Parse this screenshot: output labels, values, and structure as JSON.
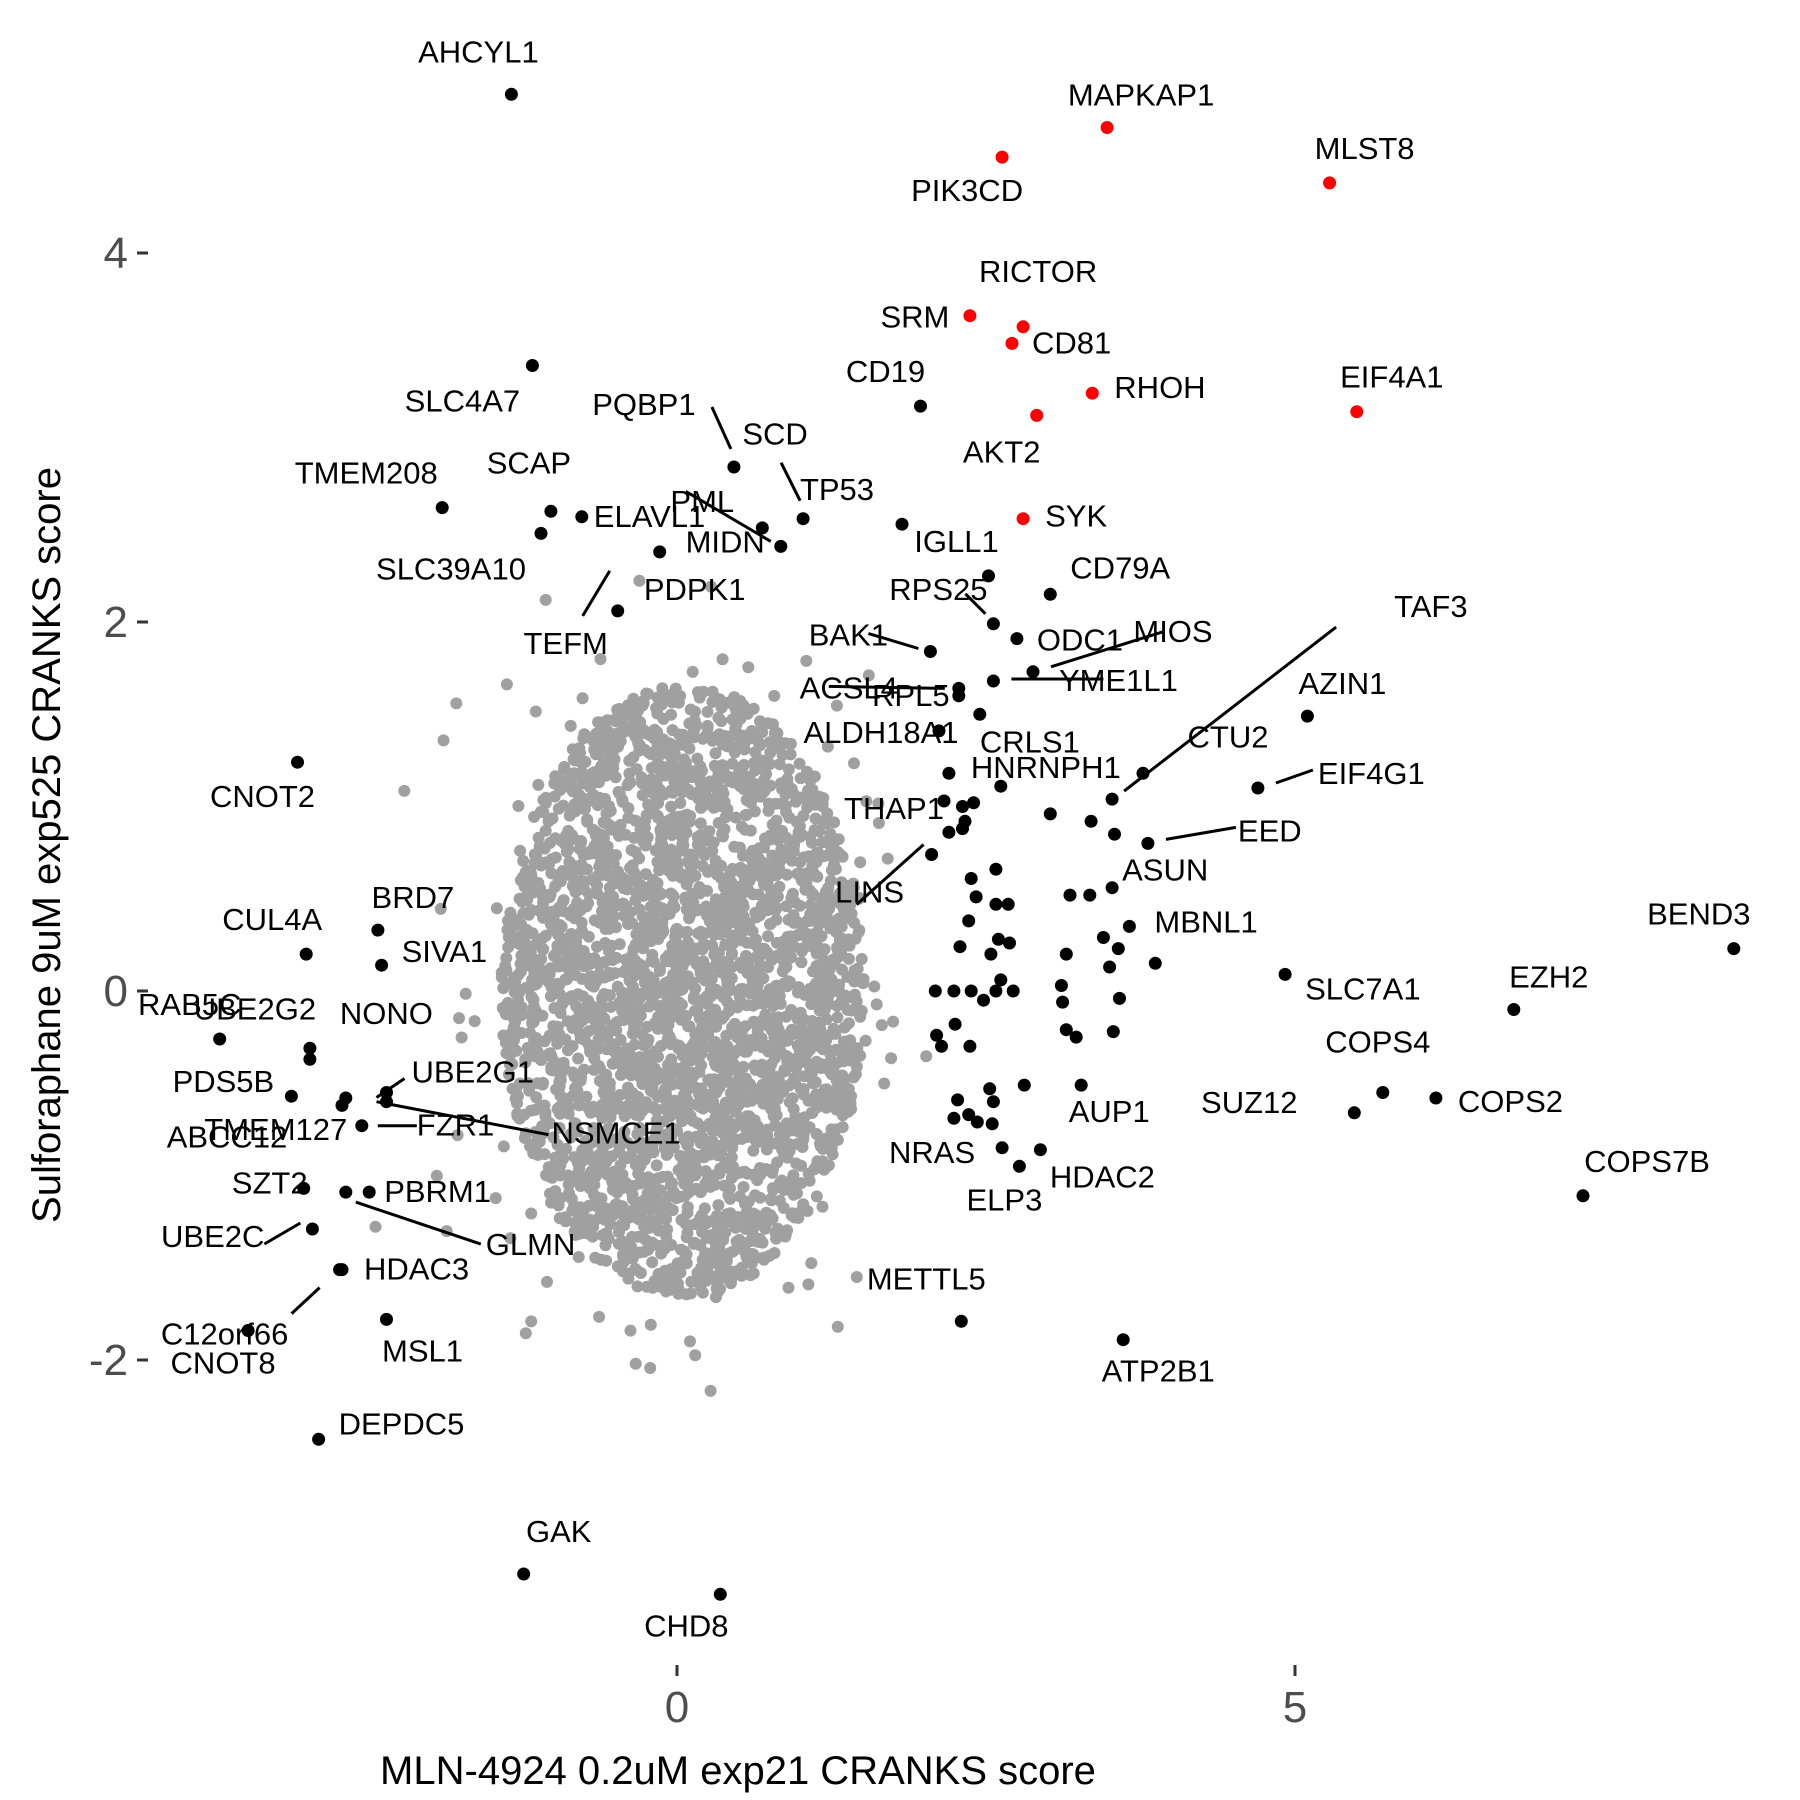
{
  "chart_data": {
    "type": "scatter",
    "xlabel": "MLN-4924 0.2uM exp21 CRANKS score",
    "ylabel": "Sulforaphane 9uM exp525 CRANKS score",
    "xlim": [
      -4.8,
      8.6
    ],
    "ylim": [
      -3.7,
      5.0
    ],
    "x_ticks": [
      0,
      5
    ],
    "y_ticks": [
      -2,
      0,
      2,
      4
    ],
    "grid": false,
    "legend": "none",
    "colors": {
      "background": "#e8e6e0",
      "highlight": "#ff0000",
      "labeled": "#000000"
    },
    "series": [
      {
        "color": "#ff0000",
        "points": [
          {
            "label": "MAPKAP1",
            "x": 3.48,
            "y": 4.68
          },
          {
            "label": "PIK3CD",
            "x": 2.63,
            "y": 4.52
          },
          {
            "label": "MLST8",
            "x": 5.28,
            "y": 4.38
          },
          {
            "label": "RICTOR",
            "x": 2.8,
            "y": 3.6
          },
          {
            "label": "SRM",
            "x": 2.37,
            "y": 3.66
          },
          {
            "label": "CD81",
            "x": 2.71,
            "y": 3.51
          },
          {
            "label": "RHOH",
            "x": 3.36,
            "y": 3.24
          },
          {
            "label": "AKT2",
            "x": 2.91,
            "y": 3.12
          },
          {
            "label": "EIF4A1",
            "x": 5.5,
            "y": 3.14
          },
          {
            "label": "SYK",
            "x": 2.8,
            "y": 2.56
          }
        ]
      },
      {
        "color": "#000000",
        "points": [
          {
            "label": "AHCYL1",
            "x": -1.34,
            "y": 4.86
          },
          {
            "label": "SLC4A7",
            "x": -1.17,
            "y": 3.39
          },
          {
            "label": "CD19",
            "x": 1.97,
            "y": 3.17
          },
          {
            "label": "PQBP1",
            "x": 0.46,
            "y": 2.84
          },
          {
            "label": "SCD",
            "x": 1.02,
            "y": 2.56
          },
          {
            "label": "TMEM208",
            "x": -1.9,
            "y": 2.62
          },
          {
            "label": "SCAP",
            "x": -1.02,
            "y": 2.6
          },
          {
            "label": "ELAVL1",
            "x": -0.77,
            "y": 2.57
          },
          {
            "label": "PML",
            "x": 0.69,
            "y": 2.51
          },
          {
            "label": "TP53",
            "x": 1.82,
            "y": 2.53
          },
          {
            "label": "SLC39A10",
            "x": -1.1,
            "y": 2.48
          },
          {
            "label": "MIDN",
            "x": 0.84,
            "y": 2.41
          },
          {
            "label": "PDPK1",
            "x": -0.14,
            "y": 2.38
          },
          {
            "label": "IGLL1",
            "x": 2.52,
            "y": 2.25
          },
          {
            "label": "CD79A",
            "x": 3.02,
            "y": 2.15
          },
          {
            "label": "TEFM",
            "x": -0.48,
            "y": 2.06
          },
          {
            "label": "RPS25",
            "x": 2.56,
            "y": 1.99
          },
          {
            "label": "ODC1",
            "x": 2.75,
            "y": 1.91
          },
          {
            "label": "BAK1",
            "x": 2.05,
            "y": 1.84
          },
          {
            "label": "MIOS",
            "x": 2.88,
            "y": 1.73
          },
          {
            "label": "YME1L1",
            "x": 2.56,
            "y": 1.68
          },
          {
            "label": "ACSL4",
            "x": 2.28,
            "y": 1.64
          },
          {
            "label": "RPL5",
            "x": 2.28,
            "y": 1.6
          },
          {
            "label": "CRLS1",
            "x": 2.45,
            "y": 1.5
          },
          {
            "label": "AZIN1",
            "x": 5.1,
            "y": 1.49
          },
          {
            "label": "ALDH18A1",
            "x": 2.12,
            "y": 1.41
          },
          {
            "label": "CTU2",
            "x": 3.77,
            "y": 1.18
          },
          {
            "label": "HNRNPH1",
            "x": 2.62,
            "y": 1.11
          },
          {
            "label": "EIF4G1",
            "x": 4.7,
            "y": 1.1
          },
          {
            "label": "TAF3",
            "x": 3.52,
            "y": 1.04
          },
          {
            "label": "THAP1",
            "x": 2.16,
            "y": 1.03
          },
          {
            "label": "EED",
            "x": 3.81,
            "y": 0.8
          },
          {
            "label": "LINS",
            "x": 2.06,
            "y": 0.74
          },
          {
            "label": "ASUN",
            "x": 3.52,
            "y": 0.56
          },
          {
            "label": "MBNL1",
            "x": 3.66,
            "y": 0.35
          },
          {
            "label": "BEND3",
            "x": 8.55,
            "y": 0.23
          },
          {
            "label": "SLC7A1",
            "x": 4.92,
            "y": 0.09
          },
          {
            "label": "EZH2",
            "x": 6.77,
            "y": -0.1
          },
          {
            "label": "CUL4A",
            "x": -3.0,
            "y": 0.2
          },
          {
            "label": "BRD7",
            "x": -2.42,
            "y": 0.33
          },
          {
            "label": "SIVA1",
            "x": -2.39,
            "y": 0.14
          },
          {
            "label": "RAB5C",
            "x": -3.7,
            "y": -0.26
          },
          {
            "label": "NONO",
            "x": -2.97,
            "y": -0.31
          },
          {
            "label": "UBE2G2",
            "x": -2.97,
            "y": -0.37
          },
          {
            "label": "COPS4",
            "x": 5.71,
            "y": -0.55
          },
          {
            "label": "UBE2G1",
            "x": -2.35,
            "y": -0.55
          },
          {
            "label": "PDS5B",
            "x": -3.12,
            "y": -0.57
          },
          {
            "label": "COPS2",
            "x": 6.14,
            "y": -0.58
          },
          {
            "label": "TMEM127",
            "x": -2.68,
            "y": -0.58
          },
          {
            "label": "ABCC12",
            "x": -2.71,
            "y": -0.62
          },
          {
            "label": "SUZ12",
            "x": 5.48,
            "y": -0.66
          },
          {
            "label": "FZR1",
            "x": -2.55,
            "y": -0.73
          },
          {
            "label": "NSMCE1",
            "x": -2.35,
            "y": -0.6
          },
          {
            "label": "AUP1",
            "x": 3.27,
            "y": -0.51
          },
          {
            "label": "NRAS",
            "x": 2.63,
            "y": -0.85
          },
          {
            "label": "HDAC2",
            "x": 2.94,
            "y": -0.86
          },
          {
            "label": "ELP3",
            "x": 2.77,
            "y": -0.95
          },
          {
            "label": "COPS7B",
            "x": 7.33,
            "y": -1.11
          },
          {
            "label": "SZT2",
            "x": -3.02,
            "y": -1.07
          },
          {
            "label": "PBRM1",
            "x": -2.49,
            "y": -1.09
          },
          {
            "label": "GLMN",
            "x": -2.68,
            "y": -1.09
          },
          {
            "label": "UBE2C",
            "x": -2.95,
            "y": -1.29
          },
          {
            "label": "C12orf66",
            "x": -2.73,
            "y": -1.51
          },
          {
            "label": "HDAC3",
            "x": -2.71,
            "y": -1.51
          },
          {
            "label": "METTL5",
            "x": 2.3,
            "y": -1.79
          },
          {
            "label": "MSL1",
            "x": -2.35,
            "y": -1.78
          },
          {
            "label": "CNOT8",
            "x": -3.47,
            "y": -1.84
          },
          {
            "label": "ATP2B1",
            "x": 3.61,
            "y": -1.89
          },
          {
            "label": "CNOT2",
            "x": -3.07,
            "y": 1.24
          },
          {
            "label": "DEPDC5",
            "x": -2.9,
            "y": -2.43
          },
          {
            "label": "GAK",
            "x": -1.24,
            "y": -3.16
          },
          {
            "label": "CHD8",
            "x": 0.35,
            "y": -3.27
          },
          {
            "label": "",
            "x": 3.02,
            "y": 0.96
          },
          {
            "label": "",
            "x": 3.35,
            "y": 0.92
          },
          {
            "label": "",
            "x": 3.54,
            "y": 0.85
          },
          {
            "label": "",
            "x": 2.2,
            "y": 1.18
          },
          {
            "label": "",
            "x": 2.31,
            "y": 1.0
          },
          {
            "label": "",
            "x": 2.33,
            "y": 0.92
          },
          {
            "label": "",
            "x": 2.4,
            "y": 1.02
          },
          {
            "label": "",
            "x": 2.2,
            "y": 0.86
          },
          {
            "label": "",
            "x": 2.31,
            "y": 0.88
          },
          {
            "label": "",
            "x": 2.58,
            "y": 0.66
          },
          {
            "label": "",
            "x": 2.38,
            "y": 0.61
          },
          {
            "label": "",
            "x": 2.42,
            "y": 0.51
          },
          {
            "label": "",
            "x": 2.58,
            "y": 0.47
          },
          {
            "label": "",
            "x": 2.68,
            "y": 0.47
          },
          {
            "label": "",
            "x": 3.18,
            "y": 0.52
          },
          {
            "label": "",
            "x": 3.34,
            "y": 0.52
          },
          {
            "label": "",
            "x": 2.36,
            "y": 0.38
          },
          {
            "label": "",
            "x": 2.6,
            "y": 0.28
          },
          {
            "label": "",
            "x": 2.69,
            "y": 0.26
          },
          {
            "label": "",
            "x": 3.45,
            "y": 0.29
          },
          {
            "label": "",
            "x": 3.57,
            "y": 0.23
          },
          {
            "label": "",
            "x": 2.29,
            "y": 0.24
          },
          {
            "label": "",
            "x": 2.54,
            "y": 0.2
          },
          {
            "label": "",
            "x": 3.15,
            "y": 0.2
          },
          {
            "label": "",
            "x": 3.5,
            "y": 0.13
          },
          {
            "label": "",
            "x": 3.87,
            "y": 0.15
          },
          {
            "label": "",
            "x": 2.62,
            "y": 0.06
          },
          {
            "label": "",
            "x": 2.58,
            "y": 0.0
          },
          {
            "label": "",
            "x": 3.11,
            "y": 0.03
          },
          {
            "label": "",
            "x": 2.09,
            "y": 0.0
          },
          {
            "label": "",
            "x": 2.24,
            "y": 0.0
          },
          {
            "label": "",
            "x": 2.38,
            "y": 0.0
          },
          {
            "label": "",
            "x": 2.48,
            "y": -0.05
          },
          {
            "label": "",
            "x": 2.72,
            "y": 0.0
          },
          {
            "label": "",
            "x": 3.12,
            "y": -0.06
          },
          {
            "label": "",
            "x": 3.58,
            "y": -0.04
          },
          {
            "label": "",
            "x": 2.25,
            "y": -0.18
          },
          {
            "label": "",
            "x": 2.1,
            "y": -0.24
          },
          {
            "label": "",
            "x": 3.15,
            "y": -0.21
          },
          {
            "label": "",
            "x": 3.23,
            "y": -0.25
          },
          {
            "label": "",
            "x": 3.53,
            "y": -0.22
          },
          {
            "label": "",
            "x": 2.14,
            "y": -0.3
          },
          {
            "label": "",
            "x": 2.37,
            "y": -0.3
          },
          {
            "label": "",
            "x": 2.53,
            "y": -0.53
          },
          {
            "label": "",
            "x": 2.81,
            "y": -0.51
          },
          {
            "label": "",
            "x": 2.27,
            "y": -0.59
          },
          {
            "label": "",
            "x": 2.56,
            "y": -0.6
          },
          {
            "label": "",
            "x": 2.36,
            "y": -0.67
          },
          {
            "label": "",
            "x": 2.24,
            "y": -0.69
          },
          {
            "label": "",
            "x": 2.43,
            "y": -0.71
          },
          {
            "label": "",
            "x": 2.55,
            "y": -0.72
          }
        ]
      }
    ]
  }
}
